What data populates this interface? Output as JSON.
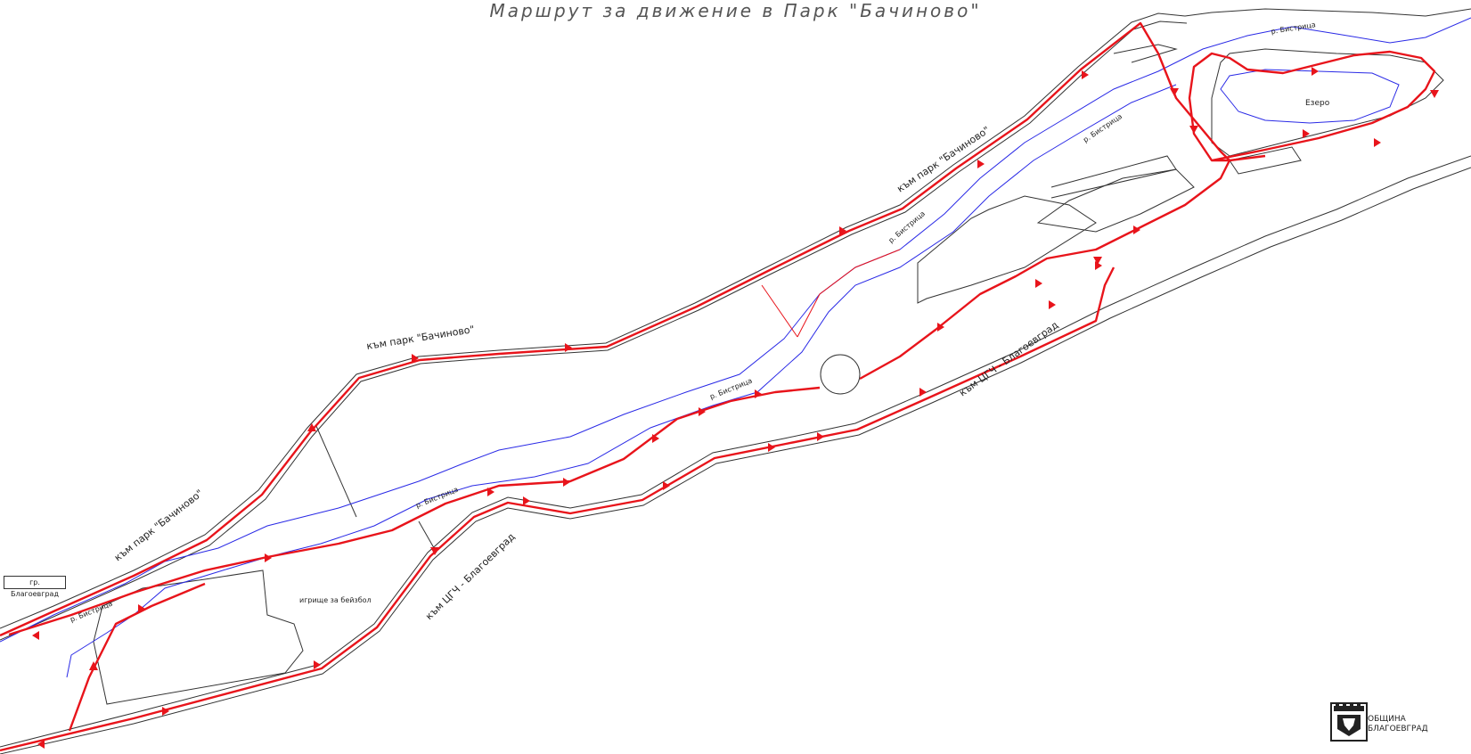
{
  "title": "Маршрут за движение в Парк \"Бачиново\"",
  "labels": {
    "park_road_1": "към парк \"Бачиново\"",
    "park_road_2": "към парк \"Бачиново\"",
    "park_road_3": "към парк \"Бачиново\"",
    "cgch_road_1": "към ЦГЧ - Благоевград",
    "cgch_road_2": "към ЦГЧ - Благоевград",
    "river_1": "р. Бистрица",
    "river_2": "р. Бистрица",
    "river_3": "р. Бистрица",
    "river_4": "р. Бистрица",
    "river_5": "р. Бистрица",
    "river_6": "р. Бистрица",
    "lake": "Езеро",
    "baseball": "игрище за бейзбол",
    "city_box": "гр. Благоевград"
  },
  "logo": {
    "line1": "ОБЩИНА",
    "line2": "БЛАГОЕВГРАД",
    "icon": "municipality-crest-icon"
  },
  "colors": {
    "route": "#e8141b",
    "road": "#333333",
    "river": "#2a2ae6"
  }
}
